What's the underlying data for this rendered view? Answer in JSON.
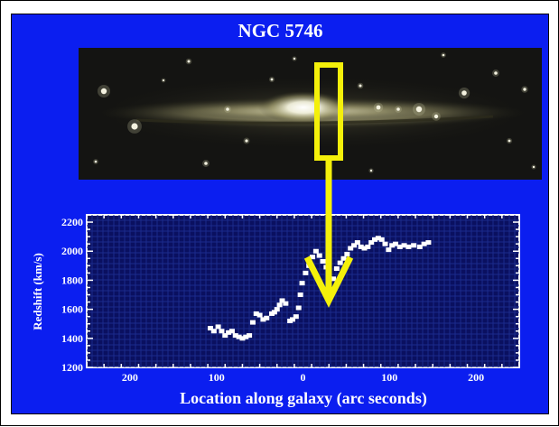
{
  "figure": {
    "title": "NGC 5746"
  },
  "colors": {
    "background": "#0b1ef0",
    "plot_bg": "#0a1060",
    "marker": "#ffffff",
    "annotation": "#f4f00a"
  },
  "chart_data": {
    "type": "scatter",
    "title": "",
    "xlabel": "Location along galaxy (arc seconds)",
    "ylabel": "Redshift (km/s)",
    "xlim": [
      -250,
      250
    ],
    "ylim": [
      1200,
      2250
    ],
    "x_direction": "reversed",
    "x_ticks": [
      -200,
      -100,
      0,
      100,
      200
    ],
    "x_tick_labels": [
      "200",
      "100",
      "0",
      "100",
      "200"
    ],
    "y_ticks": [
      1200,
      1400,
      1600,
      1800,
      2000,
      2200
    ],
    "y_tick_labels": [
      "1200",
      "1400",
      "1600",
      "1800",
      "2000",
      "2200"
    ],
    "grid": true,
    "series": [
      {
        "x": [
          -145,
          -140,
          -135,
          -128,
          -122,
          -117,
          -112,
          -107,
          -103,
          -99,
          -95,
          -91,
          -87,
          -83,
          -79,
          -75,
          -71,
          -67,
          -63,
          -59,
          -55,
          -51,
          -47,
          -43,
          -39,
          -35,
          -31,
          -27,
          -23,
          -19,
          -15,
          -11,
          -7,
          -3,
          1,
          3,
          5,
          8,
          12,
          15,
          20,
          24,
          27,
          30,
          33,
          36,
          42,
          46,
          50,
          54,
          58,
          62,
          66,
          70,
          74,
          78,
          82,
          86,
          90,
          94,
          98,
          103,
          107
        ],
        "y": [
          2060,
          2050,
          2030,
          2040,
          2030,
          2040,
          2030,
          2050,
          2040,
          2010,
          2050,
          2080,
          2090,
          2080,
          2060,
          2030,
          2020,
          2030,
          2060,
          2040,
          2020,
          1980,
          1950,
          1920,
          1880,
          1810,
          1810,
          1890,
          1930,
          1970,
          2000,
          1960,
          1900,
          1850,
          1780,
          1700,
          1610,
          1550,
          1530,
          1520,
          1640,
          1660,
          1630,
          1600,
          1580,
          1570,
          1540,
          1530,
          1560,
          1570,
          1510,
          1420,
          1410,
          1400,
          1410,
          1420,
          1450,
          1440,
          1420,
          1450,
          1480,
          1450,
          1470
        ]
      }
    ],
    "annotations": [
      {
        "type": "slit-box",
        "label": ""
      },
      {
        "type": "arrow",
        "label": ""
      }
    ]
  }
}
